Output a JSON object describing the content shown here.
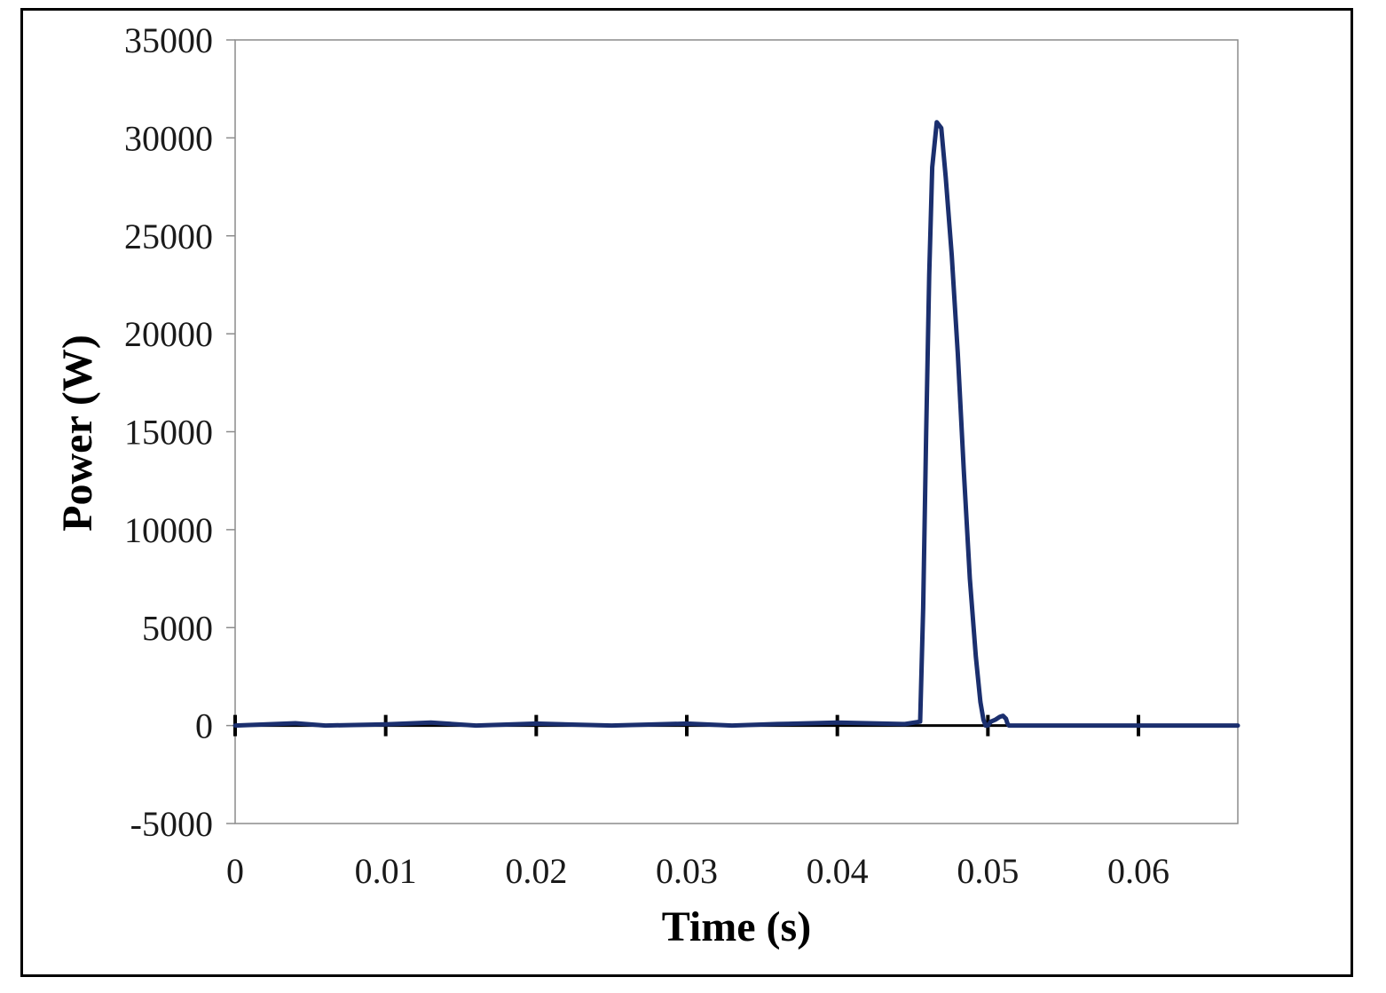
{
  "chart_data": {
    "type": "line",
    "title": "",
    "xlabel": "Time (s)",
    "ylabel": "Power (W)",
    "xlim": [
      0,
      0.0666
    ],
    "ylim": [
      -5000,
      35000
    ],
    "x_ticks": [
      0,
      0.01,
      0.02,
      0.03,
      0.04,
      0.05,
      0.06
    ],
    "x_tick_labels": [
      "0",
      "0.01",
      "0.02",
      "0.03",
      "0.04",
      "0.05",
      "0.06"
    ],
    "y_ticks": [
      -5000,
      0,
      5000,
      10000,
      15000,
      20000,
      25000,
      30000,
      35000
    ],
    "y_tick_labels": [
      "-5000",
      "0",
      "5000",
      "10000",
      "15000",
      "20000",
      "25000",
      "30000",
      "35000"
    ],
    "grid": false,
    "legend": "none",
    "series": [
      {
        "color": "#1b2f6e",
        "x": [
          0,
          0.004,
          0.006,
          0.01,
          0.013,
          0.016,
          0.02,
          0.025,
          0.03,
          0.033,
          0.036,
          0.04,
          0.0445,
          0.0455,
          0.0457,
          0.0459,
          0.0461,
          0.0463,
          0.0466,
          0.0469,
          0.0472,
          0.0476,
          0.048,
          0.0484,
          0.0488,
          0.0492,
          0.0495,
          0.0497,
          0.04985,
          0.05,
          0.0502,
          0.0505,
          0.0508,
          0.051,
          0.0512,
          0.0513,
          0.0514,
          0.052,
          0.055,
          0.06,
          0.0666
        ],
        "y": [
          0,
          120,
          0,
          60,
          150,
          0,
          100,
          0,
          100,
          0,
          80,
          150,
          80,
          200,
          6000,
          15000,
          23000,
          28500,
          30800,
          30500,
          28000,
          24000,
          19000,
          13000,
          7500,
          3500,
          1200,
          300,
          0,
          0,
          200,
          300,
          450,
          500,
          350,
          100,
          0,
          0,
          0,
          0,
          0
        ]
      }
    ],
    "reference_line": {
      "color": "#000000",
      "y": 0,
      "tick_marks_at": [
        0,
        0.01,
        0.02,
        0.03,
        0.04,
        0.05,
        0.06
      ]
    }
  }
}
